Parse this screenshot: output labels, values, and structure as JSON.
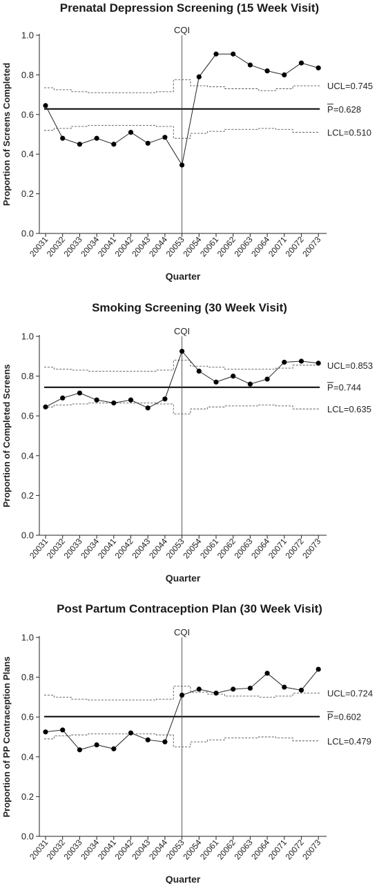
{
  "chart_data": [
    {
      "type": "line",
      "title": "Prenatal Depression Screening (15 Week Visit)",
      "xlabel": "Quarter",
      "ylabel": "Proportion of Screens Completed",
      "categories": [
        "20031",
        "20032",
        "20033",
        "20034",
        "20041",
        "20042",
        "20043",
        "20044",
        "20053",
        "20054",
        "20061",
        "20062",
        "20063",
        "20064",
        "20071",
        "20072",
        "20073"
      ],
      "ylim": [
        0,
        1
      ],
      "yticks": [
        "0.0",
        "0.2",
        "0.4",
        "0.6",
        "0.8",
        "1.0"
      ],
      "series": [
        {
          "values": [
            0.645,
            0.48,
            0.45,
            0.48,
            0.45,
            0.51,
            0.455,
            0.485,
            0.345,
            0.79,
            0.905,
            0.905,
            0.85,
            0.82,
            0.8,
            0.86,
            0.835
          ]
        }
      ],
      "ucl": [
        0.735,
        0.725,
        0.715,
        0.71,
        0.71,
        0.71,
        0.71,
        0.715,
        0.775,
        0.745,
        0.74,
        0.73,
        0.73,
        0.72,
        0.73,
        0.745,
        0.745
      ],
      "lcl": [
        0.52,
        0.53,
        0.54,
        0.545,
        0.545,
        0.545,
        0.545,
        0.54,
        0.48,
        0.505,
        0.515,
        0.525,
        0.525,
        0.53,
        0.525,
        0.51,
        0.51
      ],
      "center": 0.628,
      "cqi_label": "CQI",
      "cqi_category": "20053",
      "labels": {
        "ucl": "UCL=0.745",
        "p_symbol": "P",
        "p_text": "=0.628",
        "lcl": "LCL=0.510"
      },
      "grid": false
    },
    {
      "type": "line",
      "title": "Smoking Screening (30 Week Visit)",
      "xlabel": "Quarter",
      "ylabel": "Proportion of Completed Screens",
      "categories": [
        "20031",
        "20032",
        "20033",
        "20034",
        "20041",
        "20042",
        "20043",
        "20044",
        "20053",
        "20054",
        "20061",
        "20062",
        "20063",
        "20064",
        "20071",
        "20072",
        "20073"
      ],
      "ylim": [
        0,
        1
      ],
      "yticks": [
        "0.0",
        "0.2",
        "0.4",
        "0.6",
        "0.8",
        "1.0"
      ],
      "series": [
        {
          "values": [
            0.645,
            0.69,
            0.715,
            0.68,
            0.665,
            0.68,
            0.64,
            0.685,
            0.925,
            0.825,
            0.77,
            0.8,
            0.76,
            0.785,
            0.87,
            0.875,
            0.865
          ]
        }
      ],
      "ucl": [
        0.845,
        0.835,
        0.83,
        0.825,
        0.825,
        0.825,
        0.825,
        0.83,
        0.88,
        0.85,
        0.845,
        0.835,
        0.835,
        0.835,
        0.84,
        0.855,
        0.855
      ],
      "lcl": [
        0.645,
        0.655,
        0.66,
        0.665,
        0.665,
        0.665,
        0.665,
        0.66,
        0.61,
        0.635,
        0.645,
        0.65,
        0.65,
        0.655,
        0.65,
        0.635,
        0.635
      ],
      "center": 0.744,
      "cqi_label": "CQI",
      "cqi_category": "20053",
      "labels": {
        "ucl": "UCL=0.853",
        "p_symbol": "P",
        "p_text": "=0.744",
        "lcl": "LCL=0.635"
      },
      "grid": false
    },
    {
      "type": "line",
      "title": "Post Partum Contraception Plan (30 Week Visit)",
      "xlabel": "Quarter",
      "ylabel": "Proportion of PP Contraception Plans",
      "categories": [
        "20031",
        "20032",
        "20033",
        "20034",
        "20041",
        "20042",
        "20043",
        "20044",
        "20053",
        "20054",
        "20061",
        "20062",
        "20063",
        "20064",
        "20071",
        "20072",
        "20073"
      ],
      "ylim": [
        0,
        1
      ],
      "yticks": [
        "0.0",
        "0.2",
        "0.4",
        "0.6",
        "0.8",
        "1.0"
      ],
      "series": [
        {
          "values": [
            0.525,
            0.535,
            0.435,
            0.46,
            0.44,
            0.52,
            0.485,
            0.475,
            0.71,
            0.74,
            0.72,
            0.74,
            0.745,
            0.82,
            0.75,
            0.735,
            0.84
          ]
        }
      ],
      "ucl": [
        0.71,
        0.7,
        0.69,
        0.685,
        0.685,
        0.685,
        0.685,
        0.69,
        0.755,
        0.725,
        0.715,
        0.705,
        0.705,
        0.7,
        0.705,
        0.72,
        0.72
      ],
      "lcl": [
        0.49,
        0.505,
        0.51,
        0.515,
        0.515,
        0.515,
        0.515,
        0.51,
        0.45,
        0.475,
        0.485,
        0.495,
        0.495,
        0.5,
        0.495,
        0.48,
        0.48
      ],
      "center": 0.602,
      "cqi_label": "CQI",
      "cqi_category": "20053",
      "labels": {
        "ucl": "UCL=0.724",
        "p_symbol": "P",
        "p_text": "=0.602",
        "lcl": "LCL=0.479"
      },
      "grid": false
    }
  ]
}
